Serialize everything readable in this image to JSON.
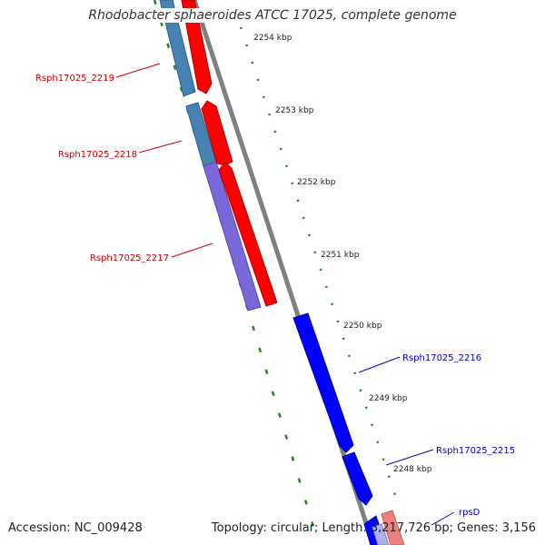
{
  "title": "Rhodobacter sphaeroides ATCC 17025, complete genome",
  "footer": {
    "accession": "Accession: NC_009428",
    "summary": "Topology: circular; Length: 3,217,726 bp; Genes: 3,156"
  },
  "ticks": [
    "2254 kbp",
    "2253 kbp",
    "2252 kbp",
    "2251 kbp",
    "2250 kbp",
    "2249 kbp",
    "2248 kbp"
  ],
  "gene_labels": {
    "left": [
      "Rsph17025_2219",
      "Rsph17025_2218",
      "Rsph17025_2217"
    ],
    "right": [
      "Rsph17025_2216",
      "Rsph17025_2215",
      "rpsD"
    ]
  },
  "colors": {
    "gene_steelblue": "#4682b4",
    "gene_red": "#ff0000",
    "gene_purple": "#7b68d8",
    "gene_blue": "#0000ff",
    "backbone": "#808080",
    "ruler": "#1a8a1a",
    "label_left": "#cc0000",
    "label_right": "#0000cc"
  }
}
